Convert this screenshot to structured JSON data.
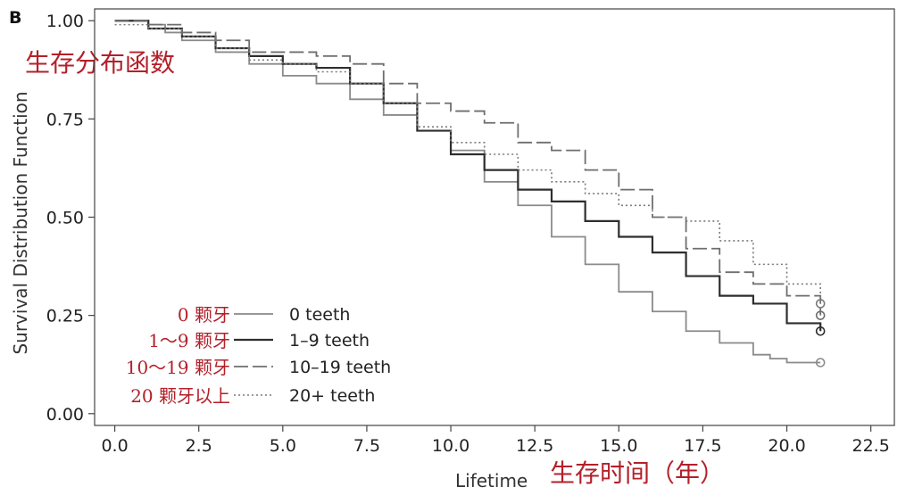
{
  "panel_label": "B",
  "chart_data": {
    "type": "line",
    "xlabel": "Lifetime",
    "ylabel": "Survival Distribution Function",
    "xlim": [
      -0.6,
      23.2
    ],
    "ylim": [
      -0.03,
      1.03
    ],
    "x_ticks": [
      "0.0",
      "2.5",
      "5.0",
      "7.5",
      "10.0",
      "12.5",
      "15.0",
      "17.5",
      "20.0",
      "22.5"
    ],
    "y_ticks": [
      "0.00",
      "0.25",
      "0.50",
      "0.75",
      "1.00"
    ],
    "grid": false,
    "legend_placement": "bottom-left",
    "annotations": {
      "y_cn": "生存分布函数",
      "x_cn": "生存时间（年）"
    },
    "series": [
      {
        "name": "0 teeth",
        "name_cn": "0 颗牙",
        "color": "#8a8a8a",
        "dash": "solid",
        "censor_marker": true,
        "x": [
          0,
          1,
          1.5,
          2,
          3,
          4,
          5,
          6,
          7,
          8,
          9,
          10,
          11,
          12,
          13,
          14,
          15,
          16,
          17,
          18,
          19,
          19.5,
          20,
          21
        ],
        "y": [
          1.0,
          0.99,
          0.97,
          0.95,
          0.92,
          0.89,
          0.86,
          0.84,
          0.8,
          0.76,
          0.72,
          0.67,
          0.59,
          0.53,
          0.45,
          0.38,
          0.31,
          0.26,
          0.21,
          0.18,
          0.15,
          0.14,
          0.13,
          0.13
        ]
      },
      {
        "name": "1–9 teeth",
        "name_cn": "1～9 颗牙",
        "color": "#2e2e2e",
        "dash": "solid",
        "censor_marker": true,
        "x": [
          0,
          1,
          2,
          3,
          4,
          5,
          6,
          7,
          8,
          9,
          10,
          11,
          12,
          13,
          14,
          15,
          16,
          17,
          18,
          19,
          20,
          21
        ],
        "y": [
          1.0,
          0.98,
          0.96,
          0.93,
          0.91,
          0.89,
          0.88,
          0.84,
          0.79,
          0.72,
          0.66,
          0.62,
          0.57,
          0.54,
          0.49,
          0.45,
          0.41,
          0.35,
          0.3,
          0.28,
          0.23,
          0.21
        ]
      },
      {
        "name": "10–19 teeth",
        "name_cn": "10～19 颗牙",
        "color": "#6e6e6e",
        "dash": "long",
        "censor_marker": true,
        "x": [
          0,
          1,
          2,
          3,
          4,
          5,
          6,
          7,
          8,
          9,
          10,
          11,
          12,
          13,
          14,
          15,
          16,
          17,
          18,
          19,
          20,
          21
        ],
        "y": [
          1.0,
          0.99,
          0.97,
          0.95,
          0.92,
          0.92,
          0.91,
          0.89,
          0.84,
          0.79,
          0.77,
          0.74,
          0.69,
          0.67,
          0.62,
          0.57,
          0.5,
          0.42,
          0.36,
          0.33,
          0.3,
          0.25
        ]
      },
      {
        "name": "20+ teeth",
        "name_cn": "20 颗牙以上",
        "color": "#7a7a7a",
        "dash": "dotted",
        "censor_marker": true,
        "x": [
          0,
          1,
          2,
          3,
          4,
          5,
          6,
          7,
          8,
          9,
          10,
          11,
          12,
          13,
          14,
          15,
          16,
          17,
          18,
          19,
          20,
          21
        ],
        "y": [
          0.99,
          0.98,
          0.96,
          0.93,
          0.9,
          0.89,
          0.87,
          0.84,
          0.79,
          0.73,
          0.69,
          0.66,
          0.62,
          0.59,
          0.56,
          0.53,
          0.5,
          0.49,
          0.44,
          0.38,
          0.33,
          0.28
        ]
      }
    ]
  }
}
